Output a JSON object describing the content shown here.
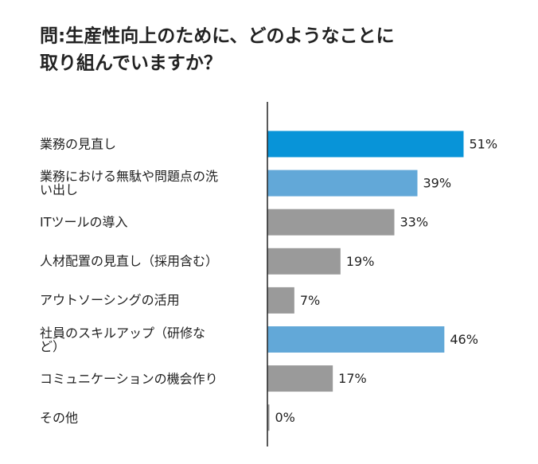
{
  "chart_data": {
    "type": "bar",
    "orientation": "horizontal",
    "title": [
      "問:生産性向上のために、どのようなことに",
      "取り組んでいますか？"
    ],
    "categories": [
      "業務の見直し",
      "業務における無駄や問題点の洗い出し",
      "ITツールの導入",
      "人材配置の見直し（採用含む）",
      "アウトソーシングの活用",
      "社員のスキルアップ（研修など）",
      "コミュニケーションの機会作り",
      "その他"
    ],
    "values": [
      51,
      39,
      33,
      19,
      7,
      46,
      17,
      0
    ],
    "value_labels": [
      "51%",
      "39%",
      "33%",
      "19%",
      "7%",
      "46%",
      "17%",
      "0%"
    ],
    "colors": [
      "#0894d8",
      "#62a8d8",
      "#9a9a9a",
      "#9a9a9a",
      "#9a9a9a",
      "#62a8d8",
      "#9a9a9a",
      "#9a9a9a"
    ],
    "xlim": [
      0,
      60
    ]
  }
}
